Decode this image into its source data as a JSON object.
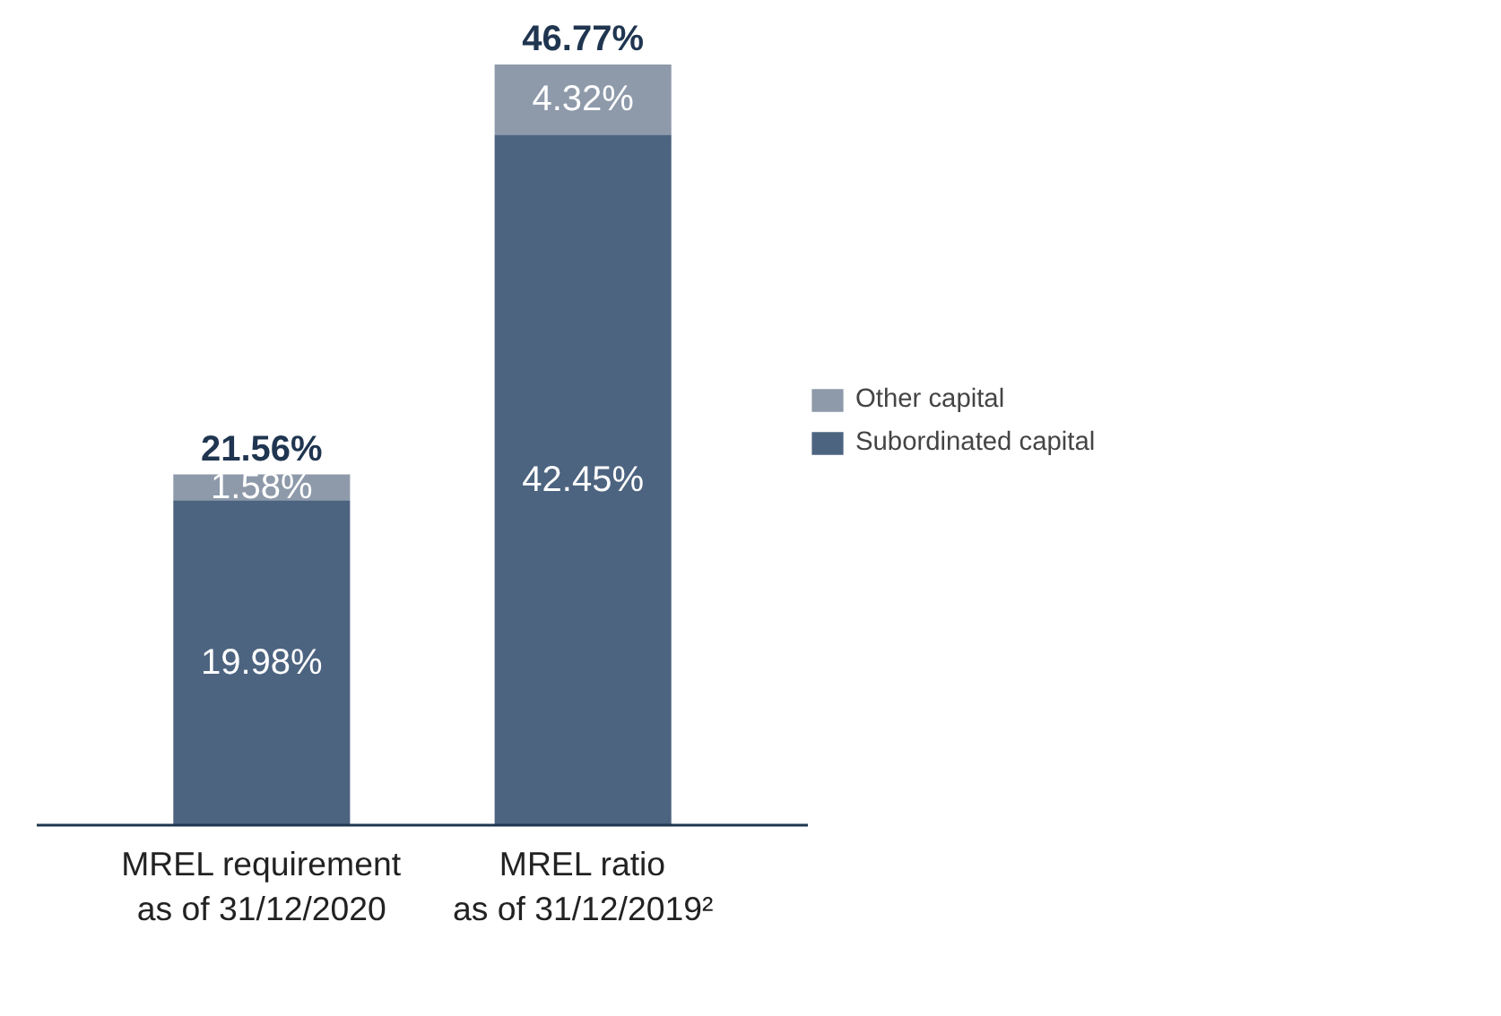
{
  "chart_data": {
    "type": "bar",
    "stacked": true,
    "categories": [
      "MREL requirement\nas of 31/12/2020",
      "MREL ratio\nas of 31/12/2019²"
    ],
    "series": [
      {
        "name": "Subordinated capital",
        "color": "#4d6480",
        "values": [
          19.98,
          42.45
        ],
        "value_labels": [
          "19.98%",
          "42.45%"
        ]
      },
      {
        "name": "Other capital",
        "color": "#8e9aaa",
        "values": [
          1.58,
          4.32
        ],
        "value_labels": [
          "1.58%",
          "4.32%"
        ]
      }
    ],
    "totals": [
      "21.56%",
      "46.77%"
    ],
    "legend": "right",
    "grid": false,
    "tick_labels": "x"
  }
}
